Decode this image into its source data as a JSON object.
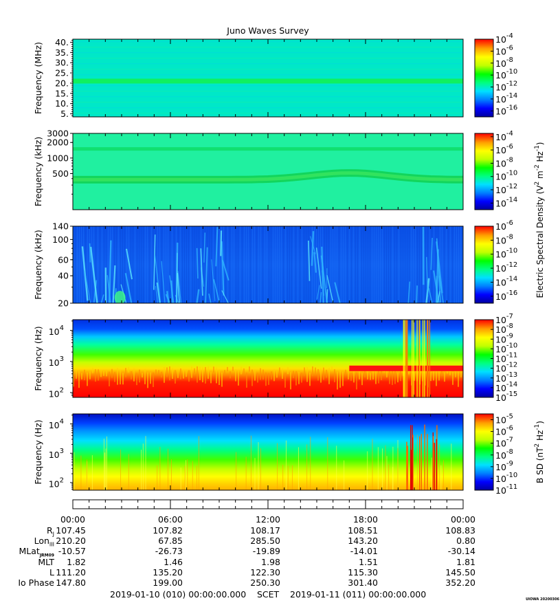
{
  "title": "Juno Waves Survey",
  "stamp": "UIOWA 20200306",
  "chart_data": [
    {
      "type": "heatmap",
      "ylabel": "Frequency (MHz)",
      "ylim": [
        3.5,
        41.5
      ],
      "yscale": "linear",
      "yticks": [
        "40.",
        "35.",
        "30.",
        "25.",
        "20.",
        "15.",
        "10.",
        "5."
      ],
      "ytick_values": [
        40,
        35,
        30,
        25,
        20,
        15,
        10,
        5
      ],
      "colorbar": {
        "exponents": [
          "-4",
          "-6",
          "-8",
          "-10",
          "-12",
          "-14",
          "-16"
        ],
        "range_exp": [
          -17,
          -4
        ]
      },
      "features": [
        {
          "frequency": 21,
          "level_exp": -11.5,
          "kind": "constant band"
        }
      ]
    },
    {
      "type": "heatmap",
      "ylabel": "Frequency (kHz)",
      "ylim": [
        100,
        3000
      ],
      "yscale": "log",
      "yticks": [
        "3000",
        "2000",
        "1000",
        "500"
      ],
      "ytick_values": [
        3000,
        2000,
        1000,
        500
      ],
      "colorbar": {
        "exponents": [
          "-4",
          "-6",
          "-8",
          "-10",
          "-12",
          "-14"
        ],
        "range_exp": [
          -15,
          -3.5
        ],
        "label_main": "Electric Spectral Density (V",
        "label_sup1": "2",
        "label_mid": " m",
        "label_sup2": "-2",
        "label_mid2": " Hz",
        "label_sup3": "-1",
        "label_end": ")"
      },
      "features": [
        {
          "frequency": 1500,
          "kind": "constant band"
        },
        {
          "frequency": 380,
          "kind": "slowly varying band peaking near 17:00"
        }
      ]
    },
    {
      "type": "heatmap",
      "ylabel": "Frequency (kHz)",
      "ylim": [
        20,
        140
      ],
      "yscale": "log",
      "yticks": [
        "140",
        "100",
        "60",
        "40",
        "20"
      ],
      "ytick_values": [
        140,
        100,
        60,
        40,
        20
      ],
      "colorbar": {
        "exponents": [
          "-6",
          "-8",
          "-10",
          "-12",
          "-14",
          "-16"
        ],
        "range_exp": [
          -17,
          -6
        ]
      },
      "features": [
        {
          "kind": "sporadic emission streaks",
          "time_windows_h": [
            [
              0.5,
              4
            ],
            [
              5,
              6.8
            ],
            [
              7.6,
              9.5
            ],
            [
              14,
              16.2
            ],
            [
              20.5,
              22.6
            ]
          ]
        }
      ]
    },
    {
      "type": "heatmap",
      "ylabel": "Frequency (Hz)",
      "ylim": [
        70,
        22000
      ],
      "yscale": "log",
      "yticks": [
        "10",
        "10",
        "10"
      ],
      "ytick_exponents": [
        "4",
        "3",
        "2"
      ],
      "ytick_values": [
        10000,
        1000,
        100
      ],
      "colorbar": {
        "exponents": [
          "-7",
          "-8",
          "-9",
          "-10",
          "-11",
          "-12",
          "-13",
          "-14",
          "-15"
        ],
        "range_exp": [
          -15,
          -7
        ]
      },
      "features": [
        {
          "frequency": 600,
          "time_h": [
            17,
            24
          ],
          "kind": "intense narrow band"
        },
        {
          "time_h": [
            20.3,
            22.5
          ],
          "kind": "broadband bursts"
        }
      ]
    },
    {
      "type": "heatmap",
      "ylabel": "Frequency (Hz)",
      "ylim": [
        55,
        22000
      ],
      "yscale": "log",
      "yticks": [
        "10",
        "10",
        "10"
      ],
      "ytick_exponents": [
        "4",
        "3",
        "2"
      ],
      "ytick_values": [
        10000,
        1000,
        100
      ],
      "colorbar": {
        "exponents": [
          "-5",
          "-6",
          "-7",
          "-8",
          "-9",
          "-10",
          "-11"
        ],
        "range_exp": [
          -11,
          -4.5
        ],
        "label_main": "B SD (nT",
        "label_sup1": "2",
        "label_mid": " Hz",
        "label_sup2": "-1",
        "label_end": ")"
      },
      "features": [
        {
          "time_h": [
            20.5,
            22.5
          ],
          "kind": "broadband bursts"
        }
      ]
    }
  ],
  "time_axis": {
    "xlim_h": [
      0,
      24
    ],
    "labels": [
      "00:00",
      "06:00",
      "12:00",
      "18:00",
      "00:00"
    ],
    "label_hours": [
      0,
      6,
      12,
      18,
      24
    ]
  },
  "ephemeris": [
    {
      "name": "R",
      "sub": "J",
      "values": [
        "107.45",
        "107.82",
        "108.17",
        "108.51",
        "108.83"
      ]
    },
    {
      "name": "Lon",
      "sub": "III",
      "values": [
        "210.20",
        "67.85",
        "285.50",
        "143.20",
        "0.80"
      ]
    },
    {
      "name": "MLat",
      "sub": "JRM09",
      "values": [
        "-10.57",
        "-26.73",
        "-19.89",
        "-14.01",
        "-30.14"
      ]
    },
    {
      "name": "MLT",
      "sub": "",
      "values": [
        "1.82",
        "1.46",
        "1.98",
        "1.51",
        "1.81"
      ]
    },
    {
      "name": "L",
      "sub": "",
      "values": [
        "111.20",
        "135.20",
        "122.30",
        "115.30",
        "145.50"
      ]
    },
    {
      "name": "Io Phase",
      "sub": "",
      "values": [
        "147.80",
        "199.00",
        "250.30",
        "301.40",
        "352.20"
      ]
    }
  ],
  "footer": {
    "start": "2019-01-10 (010) 00:00:00.000",
    "mid": "SCET",
    "end": "2019-01-11 (011) 00:00:00.000"
  },
  "colormap": [
    "#0000a0",
    "#0000ff",
    "#0080ff",
    "#00e0ff",
    "#00ff80",
    "#00ff00",
    "#c0ff00",
    "#ffff00",
    "#ffa000",
    "#ff0000"
  ]
}
